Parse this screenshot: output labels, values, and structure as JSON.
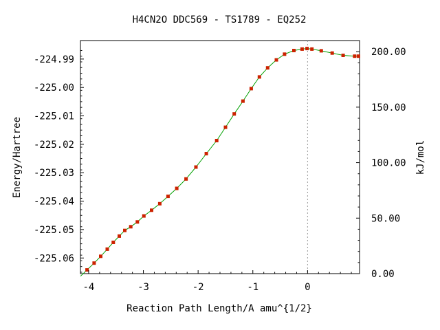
{
  "chart_data": {
    "type": "line",
    "title": "H4CN2O   DDC569 - TS1789 - EQ252",
    "xlabel": "Reaction Path Length/A amu^{1/2}",
    "ylabel": "Energy/Hartree",
    "y2label": "kJ/mol",
    "xlim": [
      -4.15,
      0.95
    ],
    "ylim": [
      -225.0655,
      -224.9835
    ],
    "y2lim": [
      0,
      210
    ],
    "x_ticks": [
      {
        "value": -4,
        "label": "-4"
      },
      {
        "value": -3,
        "label": "-3"
      },
      {
        "value": -2,
        "label": "-2"
      },
      {
        "value": -1,
        "label": "-1"
      },
      {
        "value": 0,
        "label": "0"
      }
    ],
    "y_ticks": [
      {
        "value": -224.99,
        "label": "-224.99"
      },
      {
        "value": -225.0,
        "label": "-225.00"
      },
      {
        "value": -225.01,
        "label": "-225.01"
      },
      {
        "value": -225.02,
        "label": "-225.02"
      },
      {
        "value": -225.03,
        "label": "-225.03"
      },
      {
        "value": -225.04,
        "label": "-225.04"
      },
      {
        "value": -225.05,
        "label": "-225.05"
      },
      {
        "value": -225.06,
        "label": "-225.06"
      }
    ],
    "y2_ticks": [
      {
        "value": 200,
        "label": "200.00"
      },
      {
        "value": 150,
        "label": "150.00"
      },
      {
        "value": 100,
        "label": "100.00"
      },
      {
        "value": 50,
        "label": "50.00"
      },
      {
        "value": 0,
        "label": "0.00"
      }
    ],
    "ts_marker_x": 0,
    "line_color": "#00a000",
    "marker_color": "#cc2200",
    "series": [
      {
        "x": [
          -4.03,
          -3.9,
          -3.78,
          -3.66,
          -3.55,
          -3.44,
          -3.34,
          -3.23,
          -3.11,
          -2.99,
          -2.85,
          -2.7,
          -2.55,
          -2.39,
          -2.22,
          -2.04,
          -1.85,
          -1.66,
          -1.5,
          -1.34,
          -1.18,
          -1.03,
          -0.88,
          -0.73,
          -0.57,
          -0.42,
          -0.25,
          -0.1,
          -0.01,
          0.08,
          0.25,
          0.45,
          0.65,
          0.86,
          0.93
        ],
        "y": [
          -225.0642,
          -225.0618,
          -225.0594,
          -225.0569,
          -225.0545,
          -225.0523,
          -225.0503,
          -225.049,
          -225.0473,
          -225.0452,
          -225.0432,
          -225.0409,
          -225.0383,
          -225.0355,
          -225.0322,
          -225.028,
          -225.0233,
          -225.0187,
          -225.014,
          -225.0093,
          -225.0048,
          -225.0004,
          -224.9963,
          -224.9931,
          -224.9903,
          -224.9883,
          -224.987,
          -224.9865,
          -224.9863,
          -224.9865,
          -224.9871,
          -224.9879,
          -224.9887,
          -224.989,
          -224.989
        ]
      }
    ]
  }
}
